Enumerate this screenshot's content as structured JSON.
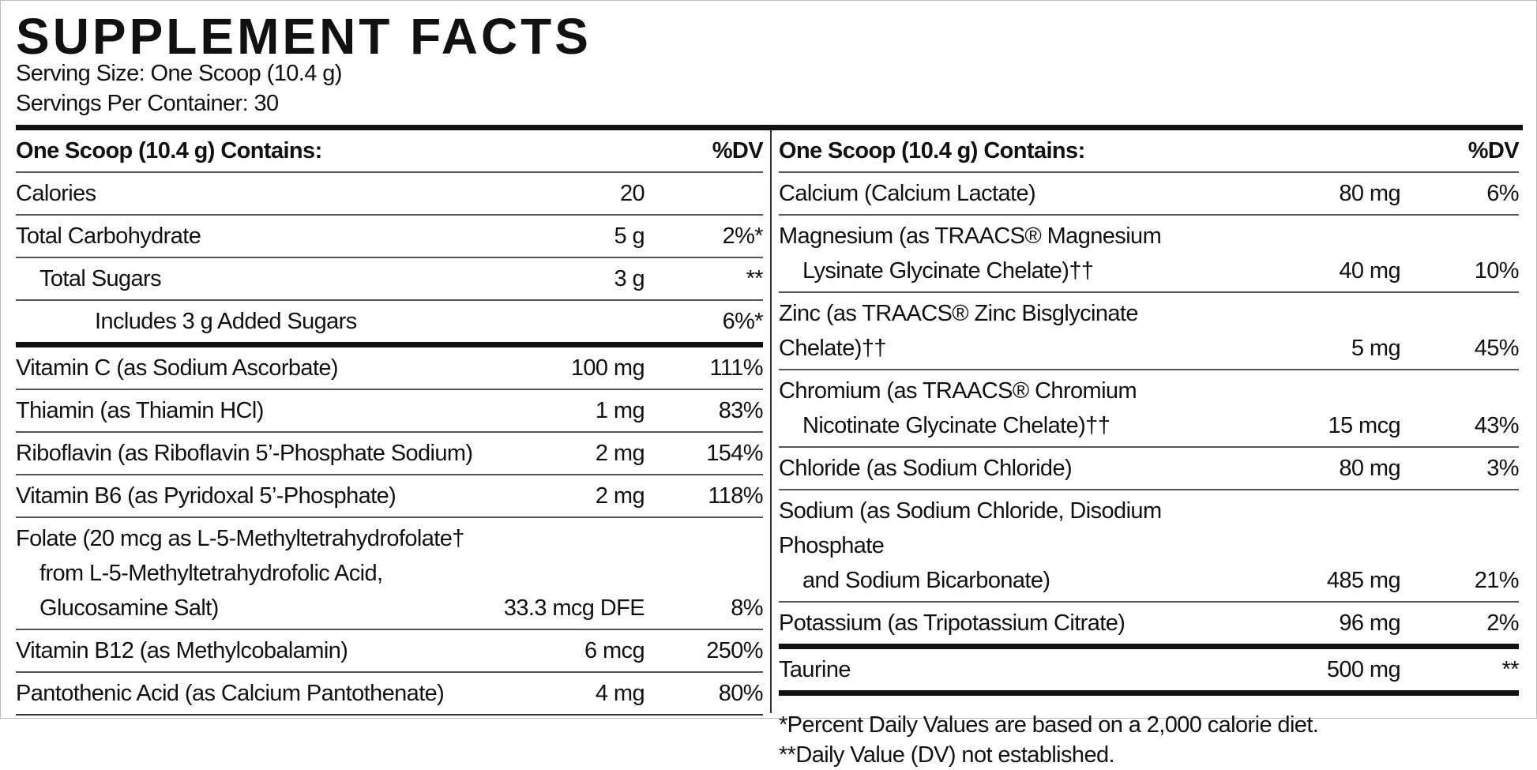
{
  "header": {
    "title": "SUPPLEMENT FACTS",
    "serving_size": "Serving Size: One Scoop (10.4 g)",
    "servings": "Servings Per Container: 30"
  },
  "columns": [
    {
      "heading": "One Scoop (10.4 g) Contains:",
      "dv_heading": "%DV",
      "sections": [
        [
          {
            "name": [
              "Calories"
            ],
            "amount": "20"
          },
          {
            "name": [
              "Total Carbohydrate"
            ],
            "amount": "5 g",
            "dv": "2%*",
            "children": [
              {
                "name": [
                  "Total Sugars"
                ],
                "amount": "3 g",
                "dv": "**",
                "children": [
                  {
                    "name": [
                      "Includes 3 g Added Sugars"
                    ],
                    "dv": "6%*"
                  }
                ]
              }
            ]
          }
        ],
        [
          {
            "name": [
              "Vitamin C (as Sodium Ascorbate)"
            ],
            "amount": "100 mg",
            "dv": "111%"
          },
          {
            "name": [
              "Thiamin (as Thiamin HCl)"
            ],
            "amount": "1 mg",
            "dv": "83%"
          },
          {
            "name": [
              "Riboflavin (as Riboflavin 5’-Phosphate Sodium)"
            ],
            "amount": "2 mg",
            "dv": "154%"
          },
          {
            "name": [
              "Vitamin B6 (as Pyridoxal 5’-Phosphate)"
            ],
            "amount": "2 mg",
            "dv": "118%"
          },
          {
            "name": [
              "Folate (20 mcg as L-5-Methyltetrahydrofolate†",
              "from L-5-Methyltetrahydrofolic Acid,",
              "Glucosamine Salt)"
            ],
            "amount": "33.3 mcg DFE",
            "dv": "8%"
          },
          {
            "name": [
              "Vitamin B12 (as Methylcobalamin)"
            ],
            "amount": "6 mcg",
            "dv": "250%"
          },
          {
            "name": [
              "Pantothenic Acid (as Calcium Pantothenate)"
            ],
            "amount": "4 mg",
            "dv": "80%"
          }
        ]
      ]
    },
    {
      "heading": "One Scoop (10.4 g) Contains:",
      "dv_heading": "%DV",
      "sections": [
        [
          {
            "name": [
              "Calcium (Calcium Lactate)"
            ],
            "amount": "80 mg",
            "dv": "6%"
          },
          {
            "name": [
              "Magnesium (as TRAACS® Magnesium",
              "Lysinate Glycinate Chelate)††"
            ],
            "amount": "40 mg",
            "dv": "10%"
          },
          {
            "name": [
              "Zinc (as TRAACS® Zinc Bisglycinate Chelate)††"
            ],
            "amount": "5 mg",
            "dv": "45%"
          },
          {
            "name": [
              "Chromium (as TRAACS® Chromium",
              "Nicotinate Glycinate Chelate)††"
            ],
            "amount": "15 mcg",
            "dv": "43%"
          },
          {
            "name": [
              "Chloride (as Sodium Chloride)"
            ],
            "amount": "80 mg",
            "dv": "3%"
          },
          {
            "name": [
              "Sodium (as Sodium Chloride, Disodium Phosphate",
              "and Sodium Bicarbonate)"
            ],
            "amount": "485 mg",
            "dv": "21%"
          },
          {
            "name": [
              "Potassium (as Tripotassium Citrate)"
            ],
            "amount": "96 mg",
            "dv": "2%"
          }
        ],
        [
          {
            "name": [
              "Taurine"
            ],
            "amount": "500 mg",
            "dv": "**"
          }
        ]
      ],
      "footnotes": [
        "*Percent Daily Values are based on a 2,000 calorie diet.",
        "**Daily Value (DV) not established."
      ]
    }
  ]
}
